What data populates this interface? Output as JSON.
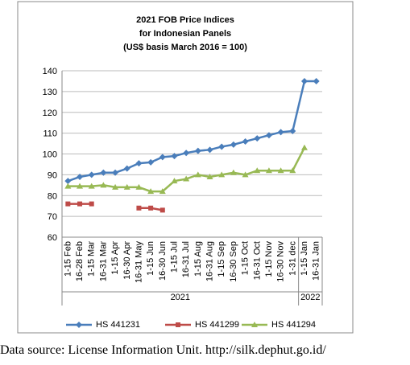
{
  "chart_data": {
    "type": "line",
    "title": [
      "2021 FOB Price Indices",
      "for Indonesian Panels",
      "(US$ basis March 2016 = 100)"
    ],
    "categories": [
      "1-15 Feb",
      "16-28 Feb",
      "1-15 Mar",
      "16-31 Mar",
      "1-15 Apr",
      "16-30 Apr",
      "16-31 May",
      "1-15 Jun",
      "16-30 Jun",
      "1-15 Jul",
      "16-31 Jul",
      "1-15 Aug",
      "16-31 Aug",
      "1-15 Sep",
      "16-30 Sep",
      "1-15 Oct",
      "16-31 Oct",
      "1-15 Nov",
      "16-30 Nov",
      "1-31 dec",
      "1-15 Jan",
      "16-31 Jan"
    ],
    "x_groups": [
      {
        "label": "2021",
        "count": 20
      },
      {
        "label": "2022",
        "count": 2
      }
    ],
    "series": [
      {
        "name": "HS 441231",
        "color": "#4a7ebb",
        "marker": "diamond",
        "values": [
          87,
          89,
          90,
          91,
          91,
          93,
          95.5,
          96,
          98.5,
          99,
          100.5,
          101.5,
          102,
          103.5,
          104.5,
          106,
          107.5,
          109,
          110.5,
          111,
          135,
          135
        ]
      },
      {
        "name": "HS 441299",
        "color": "#be4b48",
        "marker": "square",
        "values": [
          76,
          76,
          76,
          null,
          null,
          null,
          74,
          74,
          73,
          null,
          null,
          null,
          null,
          null,
          null,
          null,
          null,
          null,
          null,
          null,
          null,
          null
        ]
      },
      {
        "name": "HS 441294",
        "color": "#98b954",
        "marker": "triangle",
        "values": [
          84.5,
          84.5,
          84.5,
          85,
          84,
          84,
          84,
          82,
          82,
          87,
          88,
          90,
          89,
          90,
          91,
          90,
          92,
          92,
          92,
          92,
          103,
          null
        ]
      }
    ],
    "ylim": [
      60,
      140
    ],
    "yticks": [
      60,
      70,
      80,
      90,
      100,
      110,
      120,
      130,
      140
    ],
    "grid": true,
    "legend": "bottom"
  },
  "caption": "Data source: License Information Unit. http://silk.dephut.go.id/"
}
